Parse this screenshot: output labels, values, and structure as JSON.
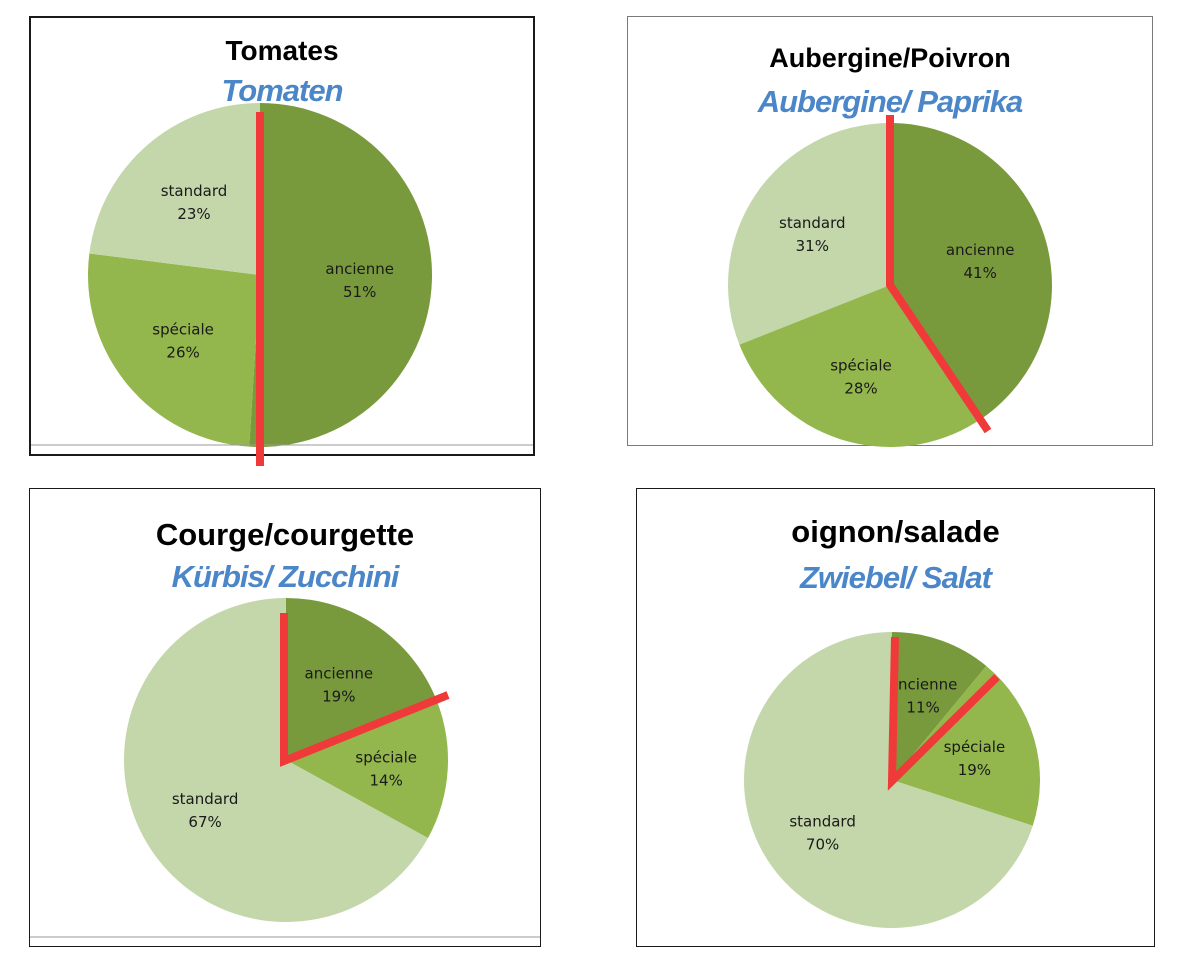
{
  "colors": {
    "ancienne": "#799a3c",
    "speciale": "#93b74d",
    "standard": "#c3d7aa",
    "marker": "#f03a3a",
    "subtitle": "#4a86c8"
  },
  "chart_data": [
    {
      "type": "pie",
      "title": "Tomates",
      "subtitle": "Tomaten",
      "slices": [
        {
          "label": "ancienne",
          "value": 51,
          "display": "51%"
        },
        {
          "label": "spéciale",
          "value": 26,
          "display": "26%"
        },
        {
          "label": "standard",
          "value": 23,
          "display": "23%"
        }
      ]
    },
    {
      "type": "pie",
      "title": "Aubergine/Poivron",
      "subtitle": "Aubergine/ Paprika",
      "slices": [
        {
          "label": "ancienne",
          "value": 41,
          "display": "41%"
        },
        {
          "label": "spéciale",
          "value": 28,
          "display": "28%"
        },
        {
          "label": "standard",
          "value": 31,
          "display": "31%"
        }
      ]
    },
    {
      "type": "pie",
      "title": "Courge/courgette",
      "subtitle": "Kürbis/ Zucchini",
      "slices": [
        {
          "label": "ancienne",
          "value": 19,
          "display": "19%"
        },
        {
          "label": "spéciale",
          "value": 14,
          "display": "14%"
        },
        {
          "label": "standard",
          "value": 67,
          "display": "67%"
        }
      ]
    },
    {
      "type": "pie",
      "title": "oignon/salade",
      "subtitle": "Zwiebel/ Salat",
      "slices": [
        {
          "label": "ancienne",
          "value": 11,
          "display": "11%"
        },
        {
          "label": "spéciale",
          "value": 19,
          "display": "19%"
        },
        {
          "label": "standard",
          "value": 70,
          "display": "70%"
        }
      ]
    }
  ]
}
